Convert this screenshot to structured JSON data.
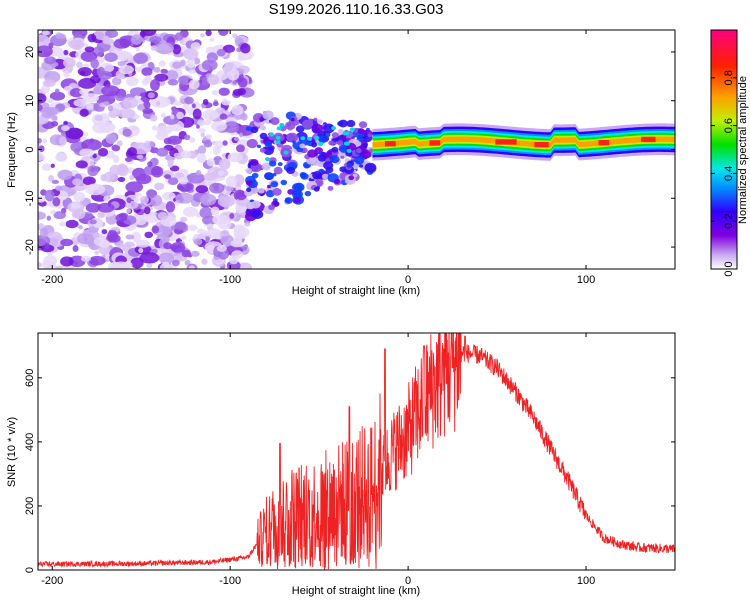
{
  "chart_data": [
    {
      "type": "heatmap",
      "title": "S199.2026.110.16.33.G03",
      "xlabel": "Height of straight line (km)",
      "ylabel": "Frequency (Hz)",
      "xlim": [
        -208,
        150
      ],
      "ylim": [
        -24.5,
        24.5
      ],
      "xticks": [
        -200,
        -100,
        0,
        100
      ],
      "xtick_labels": [
        "-200",
        "-100",
        "0",
        "100"
      ],
      "yticks": [
        -20,
        -10,
        0,
        10,
        20
      ],
      "ytick_labels": [
        "-20",
        "-10",
        "0",
        "10",
        "20"
      ],
      "colorbar": {
        "label": "Normalized spectral amplitude",
        "range": [
          0.0,
          1.0
        ],
        "ticks": [
          0.0,
          0.2,
          0.4,
          0.6,
          0.8
        ],
        "tick_labels": [
          "0.0",
          "0.2",
          "0.4",
          "0.6",
          "0.8"
        ],
        "colors": [
          "#ffffff",
          "#c8a8f0",
          "#8000e0",
          "#3000ff",
          "#0090ff",
          "#00e8e8",
          "#00e000",
          "#c0f000",
          "#ffa000",
          "#ff2000",
          "#ff0080"
        ]
      },
      "features": [
        {
          "region": "noise",
          "x_range": [
            -208,
            -90
          ],
          "freq_range": [
            -24.5,
            24.5
          ],
          "amplitude": 0.15
        },
        {
          "region": "transition",
          "x_range": [
            -90,
            -20
          ],
          "freq_range": [
            -12,
            8
          ],
          "amplitude": 0.3
        },
        {
          "region": "signal_band",
          "x_range": [
            -20,
            150
          ],
          "center_freq": 1.5,
          "amplitude": 0.75
        }
      ]
    },
    {
      "type": "line",
      "xlabel": "Height of straight line (km)",
      "ylabel": "SNR (10 * v/v)",
      "xlim": [
        -208,
        150
      ],
      "ylim": [
        0,
        740
      ],
      "xticks": [
        -200,
        -100,
        0,
        100
      ],
      "xtick_labels": [
        "-200",
        "-100",
        "0",
        "100"
      ],
      "yticks": [
        0,
        200,
        400,
        600
      ],
      "ytick_labels": [
        "0",
        "200",
        "400",
        "600"
      ],
      "color": "#ee2222",
      "envelope": {
        "x": [
          -208,
          -150,
          -110,
          -90,
          -80,
          -70,
          -60,
          -50,
          -40,
          -30,
          -20,
          -10,
          0,
          10,
          20,
          30,
          40,
          50,
          60,
          70,
          80,
          90,
          100,
          110,
          120,
          130,
          140,
          150
        ],
        "y": [
          18,
          20,
          25,
          40,
          120,
          170,
          180,
          190,
          210,
          230,
          250,
          360,
          430,
          540,
          620,
          680,
          670,
          630,
          560,
          480,
          380,
          280,
          170,
          100,
          80,
          70,
          68,
          65
        ]
      },
      "peaks": [
        {
          "x": -72,
          "y": 395
        },
        {
          "x": -33,
          "y": 510
        },
        {
          "x": -13,
          "y": 690
        },
        {
          "x": 9,
          "y": 700
        },
        {
          "x": 20,
          "y": 690
        },
        {
          "x": 32,
          "y": 730
        }
      ]
    }
  ]
}
